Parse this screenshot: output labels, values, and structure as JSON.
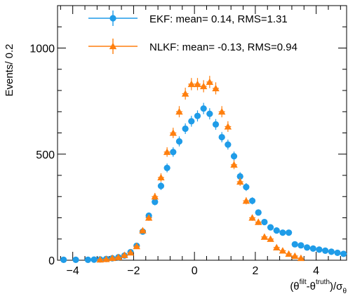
{
  "chart_data": {
    "type": "scatter",
    "xlabel": "(θ^filt-θ^truth)/σ_θ",
    "ylabel": "Events/ 0.2",
    "xlim": [
      -4.5,
      5.0
    ],
    "ylim": [
      0,
      1200
    ],
    "x_ticks": [
      -4,
      -2,
      0,
      2,
      4
    ],
    "x_tick_labels": [
      "−4",
      "−2",
      "0",
      "2",
      "4"
    ],
    "y_ticks": [
      0,
      500,
      1000
    ],
    "y_tick_labels": [
      "0",
      "500",
      "1000"
    ],
    "grid": false,
    "legend_position": "top-right",
    "series": [
      {
        "name": "EKF: mean= 0.14, RMS=1.31",
        "color": "#1f9ce8",
        "marker": "circle",
        "points": [
          [
            -4.3,
            2
          ],
          [
            -3.9,
            2
          ],
          [
            -3.5,
            2
          ],
          [
            -3.3,
            3
          ],
          [
            -3.1,
            4
          ],
          [
            -2.9,
            6
          ],
          [
            -2.7,
            9
          ],
          [
            -2.5,
            14
          ],
          [
            -2.3,
            22
          ],
          [
            -2.1,
            38
          ],
          [
            -1.9,
            68
          ],
          [
            -1.7,
            135
          ],
          [
            -1.5,
            210
          ],
          [
            -1.3,
            275
          ],
          [
            -1.1,
            350
          ],
          [
            -0.9,
            435
          ],
          [
            -0.7,
            510
          ],
          [
            -0.5,
            560
          ],
          [
            -0.3,
            620
          ],
          [
            -0.1,
            655
          ],
          [
            0.1,
            680
          ],
          [
            0.3,
            715
          ],
          [
            0.5,
            690
          ],
          [
            0.7,
            640
          ],
          [
            0.9,
            580
          ],
          [
            1.1,
            545
          ],
          [
            1.3,
            490
          ],
          [
            1.5,
            395
          ],
          [
            1.7,
            345
          ],
          [
            1.9,
            280
          ],
          [
            2.1,
            225
          ],
          [
            2.3,
            180
          ],
          [
            2.5,
            155
          ],
          [
            2.7,
            140
          ],
          [
            2.9,
            130
          ],
          [
            3.1,
            130
          ],
          [
            3.3,
            75
          ],
          [
            3.5,
            70
          ],
          [
            3.7,
            60
          ],
          [
            3.9,
            55
          ],
          [
            4.1,
            50
          ],
          [
            4.3,
            45
          ],
          [
            4.5,
            40
          ],
          [
            4.7,
            35
          ],
          [
            4.9,
            30
          ]
        ]
      },
      {
        "name": "NLKF: mean= -0.13, RMS=0.94",
        "color": "#ff7f0e",
        "marker": "triangle",
        "points": [
          [
            -3.1,
            3
          ],
          [
            -2.9,
            5
          ],
          [
            -2.7,
            10
          ],
          [
            -2.5,
            14
          ],
          [
            -2.3,
            24
          ],
          [
            -2.1,
            36
          ],
          [
            -1.9,
            66
          ],
          [
            -1.7,
            140
          ],
          [
            -1.5,
            200
          ],
          [
            -1.3,
            300
          ],
          [
            -1.1,
            390
          ],
          [
            -0.9,
            510
          ],
          [
            -0.7,
            600
          ],
          [
            -0.5,
            700
          ],
          [
            -0.3,
            785
          ],
          [
            -0.1,
            830
          ],
          [
            0.1,
            830
          ],
          [
            0.3,
            820
          ],
          [
            0.5,
            840
          ],
          [
            0.7,
            810
          ],
          [
            0.9,
            700
          ],
          [
            1.1,
            630
          ],
          [
            1.3,
            450
          ],
          [
            1.5,
            370
          ],
          [
            1.7,
            280
          ],
          [
            1.9,
            200
          ],
          [
            2.1,
            180
          ],
          [
            2.3,
            110
          ],
          [
            2.5,
            100
          ],
          [
            2.7,
            60
          ],
          [
            2.9,
            45
          ],
          [
            3.1,
            30
          ],
          [
            3.3,
            20
          ],
          [
            3.5,
            10
          ]
        ]
      }
    ]
  }
}
